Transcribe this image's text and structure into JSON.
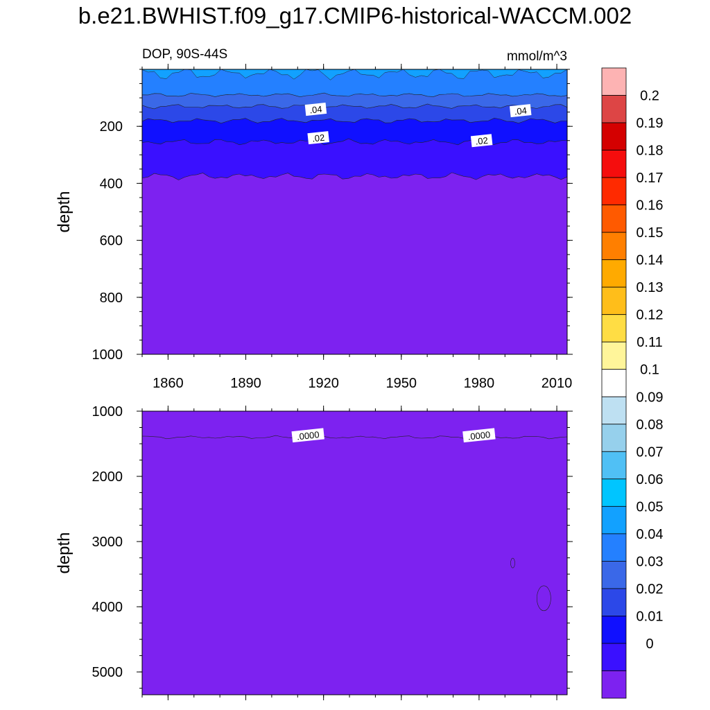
{
  "title": "b.e21.BWHIST.f09_g17.CMIP6-historical-WACCM.002",
  "chart_data": {
    "type": "heatmap",
    "variable": "DOP, 90S-44S",
    "units": "mmol/m^3",
    "x_ticks": [
      "1860",
      "1890",
      "1920",
      "1950",
      "1980",
      "2010"
    ],
    "x_range": [
      1850,
      2014
    ],
    "panels": [
      {
        "ylabel": "depth",
        "ylim": [
          0,
          1000
        ],
        "y_ticks": [
          "200",
          "400",
          "600",
          "800",
          "1000"
        ],
        "layers": [
          {
            "top": 0,
            "bottom": 90,
            "value": 0.055
          },
          {
            "top": 90,
            "bottom": 130,
            "value": 0.045
          },
          {
            "top": 130,
            "bottom": 180,
            "value": 0.035
          },
          {
            "top": 180,
            "bottom": 255,
            "value": 0.025
          },
          {
            "top": 255,
            "bottom": 375,
            "value": 0.015
          },
          {
            "top": 375,
            "bottom": 1000,
            "value": 0.005
          }
        ],
        "contour_labels": [
          {
            "text": ".04",
            "year": 1917,
            "depth": 140
          },
          {
            "text": ".04",
            "year": 1996,
            "depth": 145
          },
          {
            "text": ".02",
            "year": 1918,
            "depth": 240
          },
          {
            "text": ".02",
            "year": 1981,
            "depth": 250
          }
        ]
      },
      {
        "ylabel": "depth",
        "ylim": [
          1000,
          5350
        ],
        "y_ticks": [
          "1000",
          "2000",
          "3000",
          "4000",
          "5000"
        ],
        "layers": [
          {
            "top": 1000,
            "bottom": 1400,
            "value": 0.005
          },
          {
            "top": 1400,
            "bottom": 5350,
            "value": 0.0
          }
        ],
        "contour_labels": [
          {
            "text": ".0000",
            "year": 1914,
            "depth": 1370
          },
          {
            "text": ".0000",
            "year": 1980,
            "depth": 1370
          }
        ]
      }
    ],
    "colorbar": {
      "labels": [
        "0.2",
        "0.19",
        "0.18",
        "0.17",
        "0.16",
        "0.15",
        "0.14",
        "0.13",
        "0.12",
        "0.11",
        "0.1",
        "0.09",
        "0.08",
        "0.07",
        "0.06",
        "0.05",
        "0.04",
        "0.03",
        "0.02",
        "0.01",
        "0"
      ],
      "colors": [
        "#FDB3B3",
        "#DD4545",
        "#D40000",
        "#F50D0D",
        "#FF2A00",
        "#FF5A00",
        "#FF7F00",
        "#FFAA00",
        "#FFBE1A",
        "#FFDD44",
        "#FFF59A",
        "#FFFFFF",
        "#BEE0F2",
        "#96D0EC",
        "#50C0F5",
        "#00C5FF",
        "#12A1FF",
        "#2480FF",
        "#3A68E8",
        "#2C48E8",
        "#1010FF",
        "#3A10FF",
        "#7D22F0"
      ]
    }
  }
}
